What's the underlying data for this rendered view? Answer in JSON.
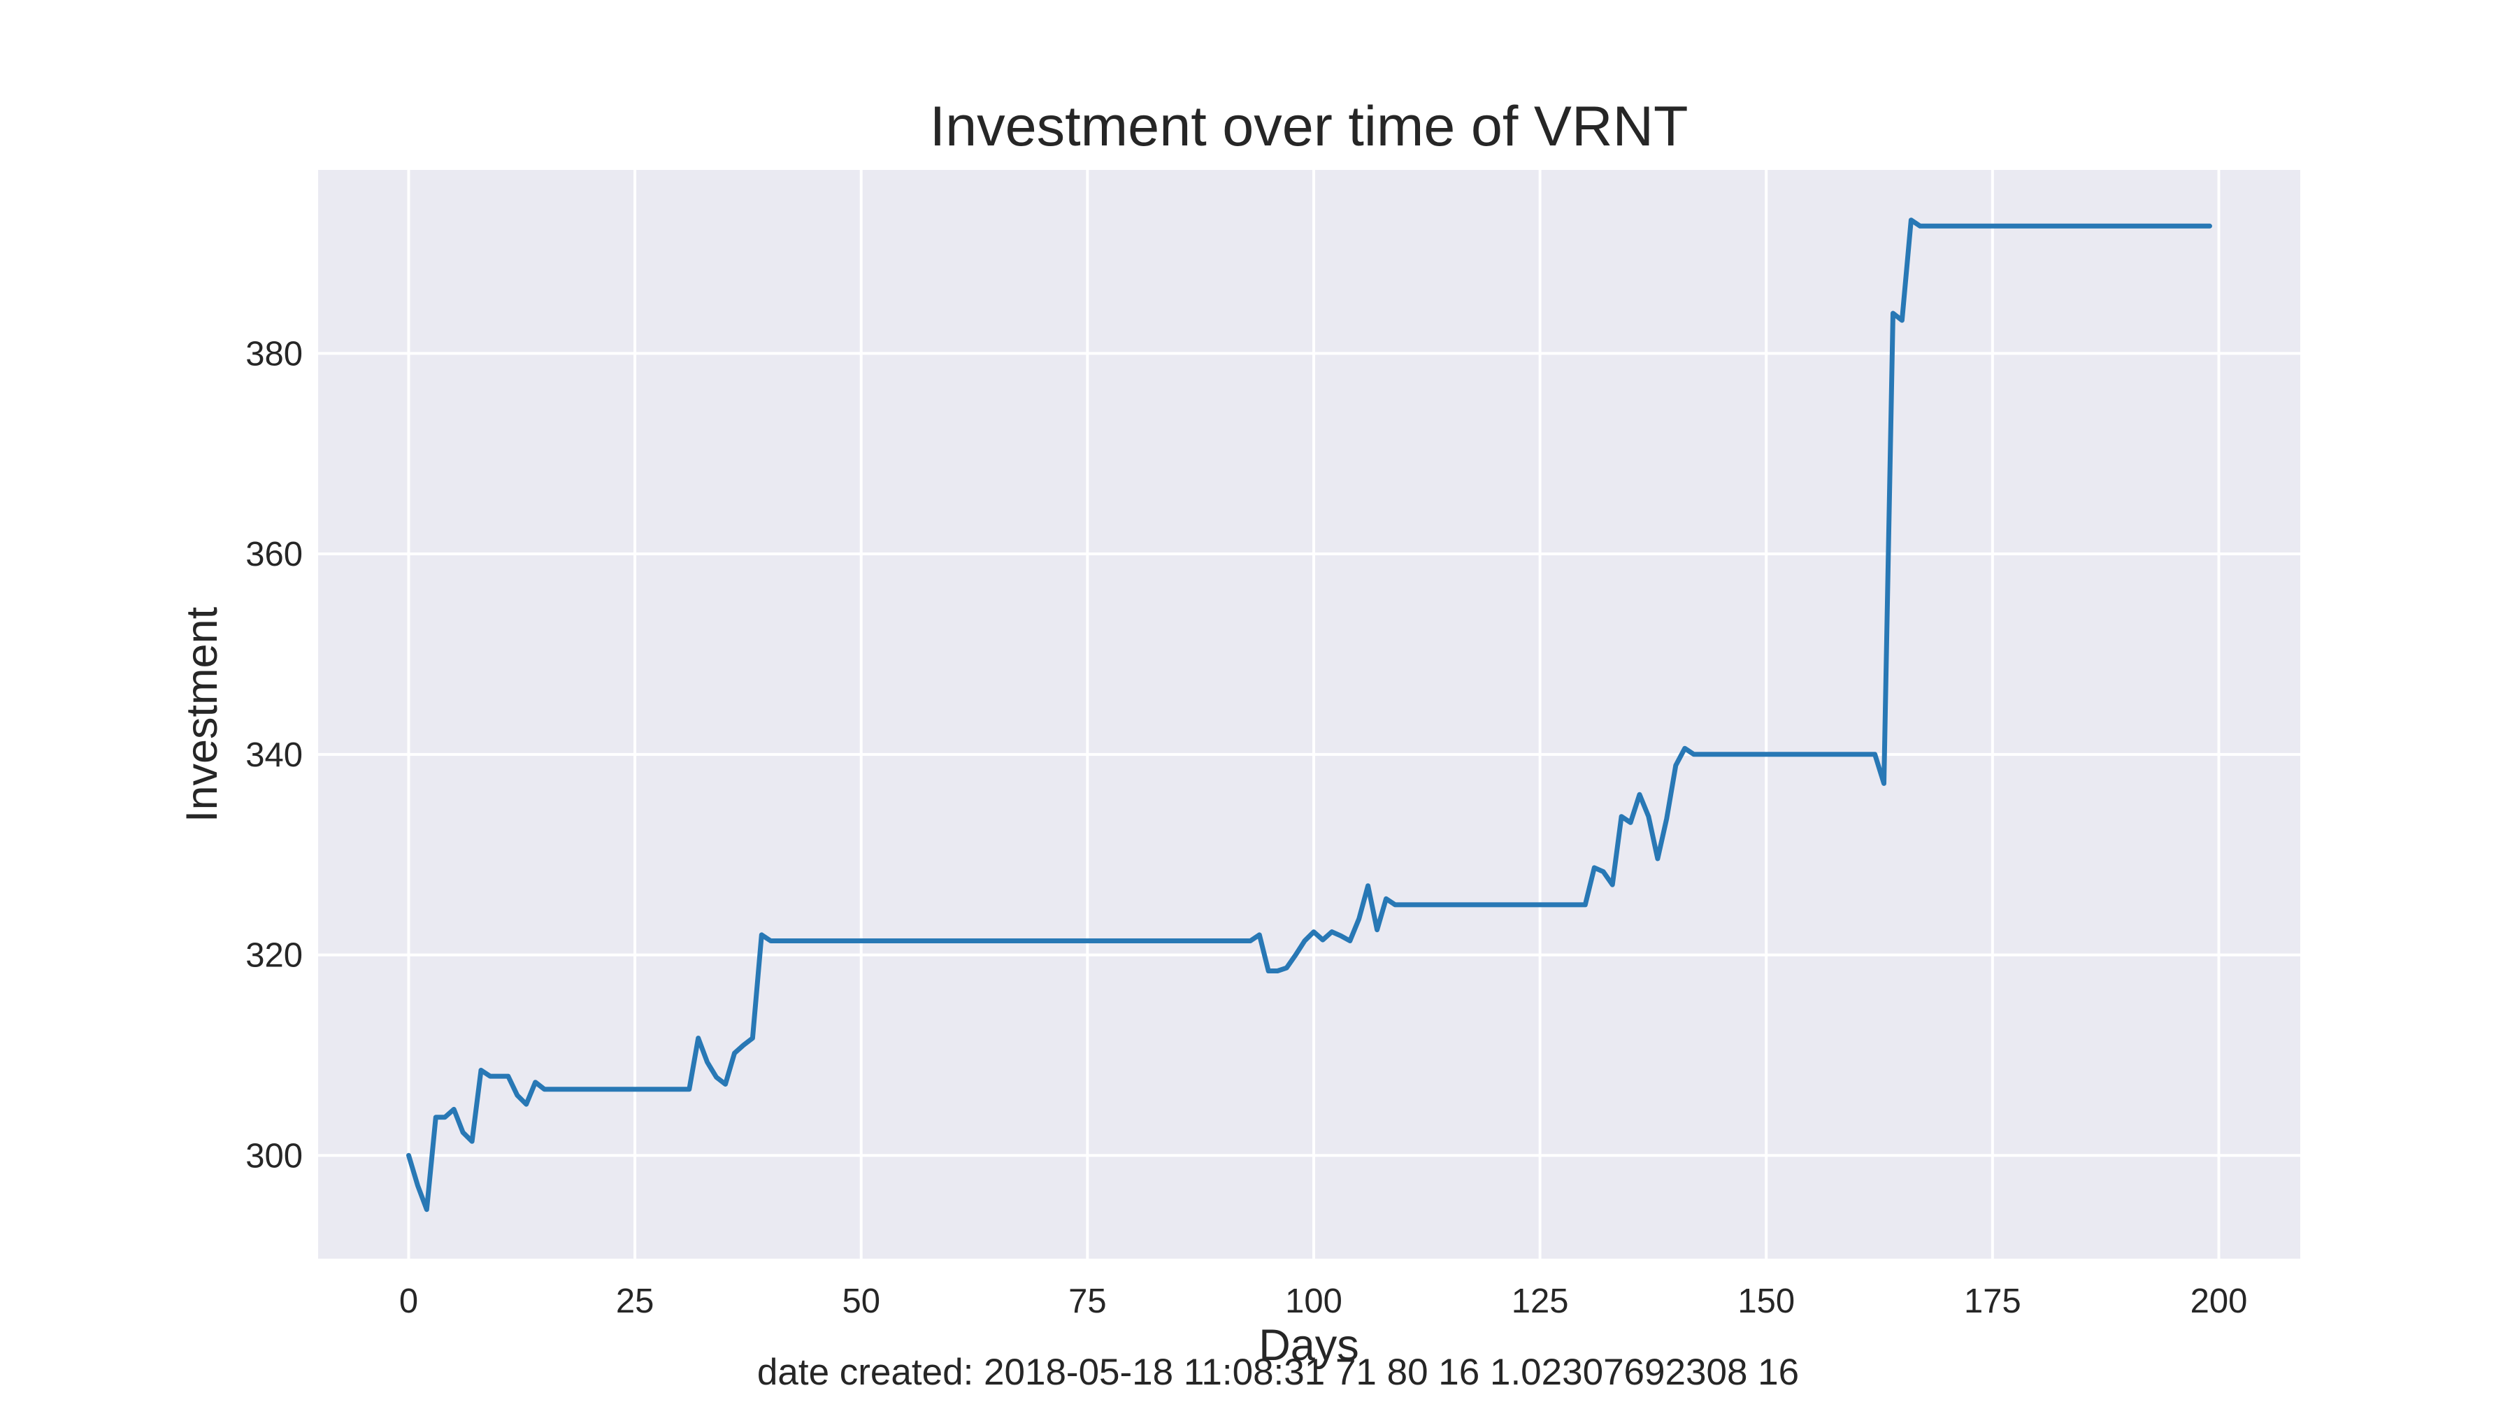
{
  "chart_data": {
    "type": "line",
    "title": "Investment over time of VRNT",
    "xlabel": "Days",
    "ylabel": "Investment",
    "xlim": [
      -10,
      209
    ],
    "ylim": [
      289.7,
      398.3
    ],
    "xticks": [
      0,
      25,
      50,
      75,
      100,
      125,
      150,
      175,
      200
    ],
    "yticks": [
      300,
      320,
      340,
      360,
      380
    ],
    "grid": true,
    "legend": "none",
    "colors": {
      "line": "#2878b5",
      "plot_background": "#eaeaf2",
      "grid": "#ffffff",
      "figure_background": "#ffffff"
    },
    "series": [
      {
        "x": [
          0,
          1,
          2,
          3,
          4,
          5,
          6,
          7,
          8,
          9,
          10,
          11,
          12,
          13,
          14,
          15,
          16,
          20,
          25,
          30,
          31,
          32,
          33,
          34,
          35,
          36,
          37,
          38,
          39,
          40,
          41,
          50,
          60,
          70,
          80,
          90,
          93,
          94,
          95,
          96,
          97,
          98,
          99,
          100,
          101,
          102,
          103,
          104,
          105,
          106,
          107,
          108,
          109,
          120,
          130,
          131,
          132,
          133,
          134,
          135,
          136,
          137,
          138,
          139,
          140,
          141,
          142,
          150,
          160,
          162,
          163,
          164,
          165,
          166,
          167,
          170,
          180,
          190,
          199
        ],
        "y": [
          300.0,
          297.0,
          294.6,
          303.8,
          303.8,
          304.6,
          302.3,
          301.4,
          308.5,
          307.9,
          307.9,
          307.9,
          306.0,
          305.1,
          307.3,
          306.6,
          306.6,
          306.6,
          306.6,
          306.6,
          306.6,
          311.7,
          309.3,
          307.8,
          307.1,
          310.2,
          311.0,
          311.7,
          322.0,
          321.4,
          321.4,
          321.4,
          321.4,
          321.4,
          321.4,
          321.4,
          321.4,
          322.0,
          318.4,
          318.4,
          318.7,
          320.0,
          321.4,
          322.3,
          321.5,
          322.3,
          321.9,
          321.4,
          323.6,
          326.9,
          322.5,
          325.6,
          325.0,
          325.0,
          325.0,
          328.7,
          328.3,
          327.0,
          333.8,
          333.2,
          336.0,
          333.8,
          329.6,
          333.6,
          338.9,
          340.6,
          340.0,
          340.0,
          340.0,
          340.0,
          337.1,
          384.0,
          383.3,
          393.3,
          392.7,
          392.7,
          392.7,
          392.7,
          392.7
        ]
      }
    ]
  },
  "footer": {
    "text": "date created: 2018-05-18 11:08:31 71 80 16 1.02307692308 16"
  }
}
